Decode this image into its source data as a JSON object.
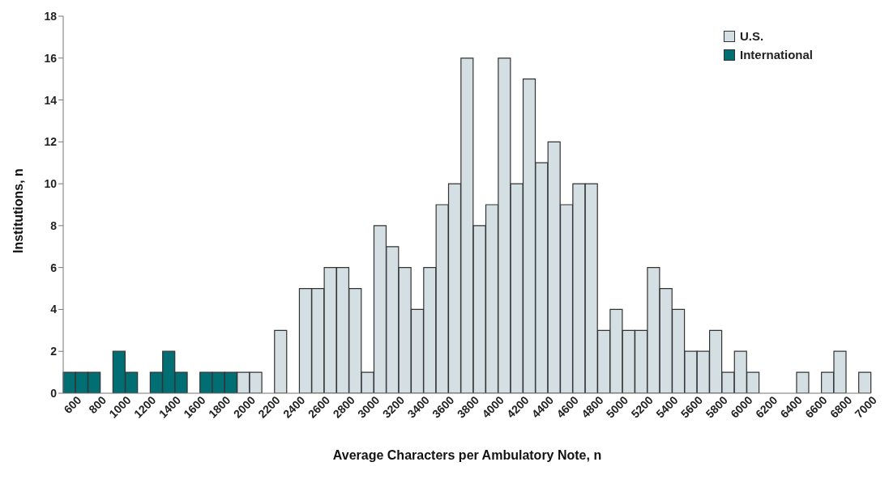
{
  "chart_data": {
    "type": "bar",
    "xlabel": "Average Characters per Ambulatory Note, n",
    "ylabel": "Institutions, n",
    "categories": [
      "600",
      null,
      "800",
      null,
      "1000",
      null,
      "1200",
      null,
      "1400",
      null,
      "1600",
      null,
      "1800",
      null,
      "2000",
      null,
      "2200",
      null,
      "2400",
      null,
      "2600",
      null,
      "2800",
      null,
      "3000",
      null,
      "3200",
      null,
      "3400",
      null,
      "3600",
      null,
      "3800",
      null,
      "4000",
      null,
      "4200",
      null,
      "4400",
      null,
      "4600",
      null,
      "4800",
      null,
      "5000",
      null,
      "5200",
      null,
      "5400",
      null,
      "5600",
      null,
      "5800",
      null,
      "6000",
      null,
      "6200",
      null,
      "6400",
      null,
      "6600",
      null,
      "6800",
      null,
      "7000"
    ],
    "stacked": true,
    "series": [
      {
        "name": "U.S.",
        "color": "#d3dfe3",
        "values": [
          null,
          null,
          null,
          null,
          null,
          null,
          null,
          null,
          null,
          null,
          null,
          null,
          null,
          null,
          1,
          1,
          0,
          3,
          0,
          5,
          5,
          6,
          6,
          5,
          1,
          8,
          7,
          6,
          4,
          6,
          9,
          10,
          16,
          8,
          9,
          16,
          10,
          15,
          11,
          12,
          9,
          10,
          10,
          3,
          4,
          3,
          3,
          6,
          5,
          4,
          2,
          2,
          3,
          1,
          2,
          1,
          0,
          0,
          0,
          1,
          0,
          1,
          2,
          0,
          1
        ]
      },
      {
        "name": "International",
        "color": "#006e73",
        "values": [
          1,
          1,
          1,
          0,
          2,
          1,
          0,
          1,
          2,
          1,
          0,
          1,
          1,
          1,
          null,
          null,
          null,
          null,
          null,
          null,
          null,
          null,
          null,
          null,
          null,
          null,
          null,
          null,
          null,
          null,
          null,
          null,
          null,
          null,
          null,
          null,
          null,
          null,
          null,
          null,
          null,
          null,
          null,
          null,
          null,
          null,
          null,
          null,
          null,
          null,
          null,
          null,
          null,
          null,
          null,
          null,
          null,
          null,
          null,
          null,
          null,
          null,
          null,
          null,
          null
        ]
      }
    ],
    "ylim": [
      0,
      18
    ],
    "yticks": [
      0,
      2,
      4,
      6,
      8,
      10,
      12,
      14,
      16,
      18
    ],
    "grid": false,
    "legend": "top right"
  }
}
